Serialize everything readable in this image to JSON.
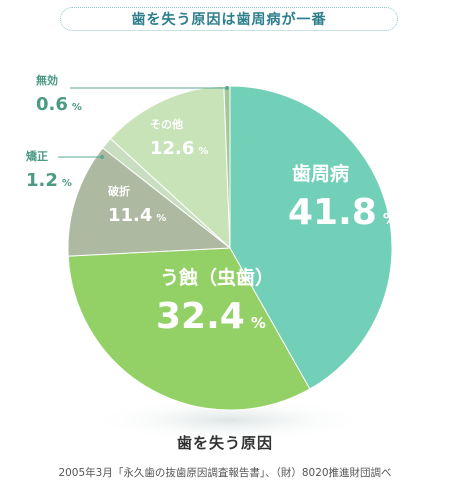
{
  "header": {
    "title": "歯を失う原因は歯周病が一番"
  },
  "chart_data": {
    "type": "pie",
    "title": "歯を失う原因",
    "unit": "%",
    "slices": [
      {
        "label": "歯周病",
        "value": 41.8,
        "color": "#72cfb8"
      },
      {
        "label": "う蝕（虫歯）",
        "value": 32.4,
        "color": "#93d166"
      },
      {
        "label": "破折",
        "value": 11.4,
        "color": "#aeb9a1"
      },
      {
        "label": "矯正",
        "value": 1.2,
        "color": "#c9ddc1"
      },
      {
        "label": "その他",
        "value": 12.6,
        "color": "#c9e3b9"
      },
      {
        "label": "無効",
        "value": 0.6,
        "color": "#a3c89a"
      }
    ]
  },
  "footer": {
    "caption": "歯を失う原因",
    "source": "2005年3月「永久歯の抜歯原因調査報告書」、（財）8020推進財団調べ"
  }
}
